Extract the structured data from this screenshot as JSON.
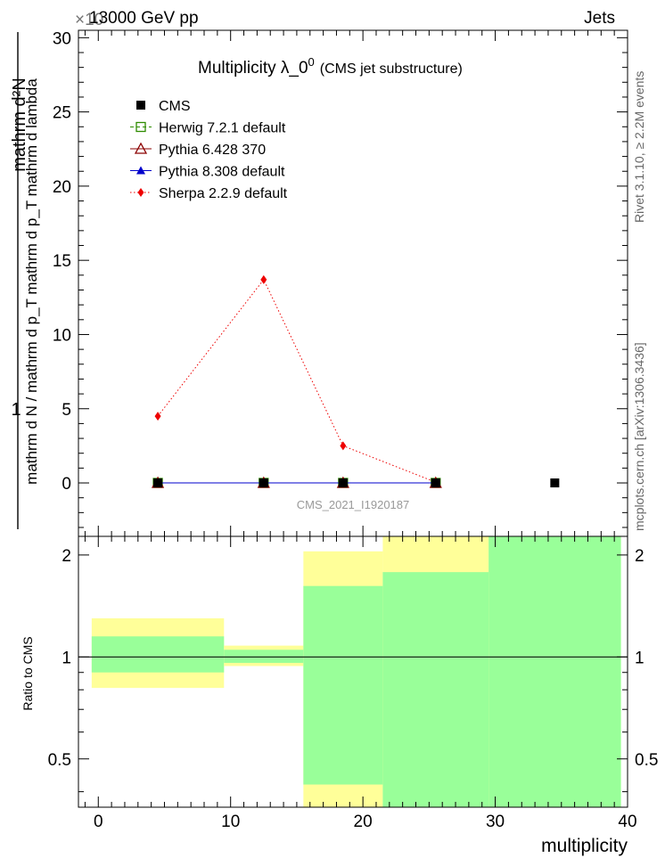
{
  "header": {
    "left": "13000 GeV pp",
    "exponent": "×10",
    "right": "Jets",
    "side_right_top": "Rivet 3.1.10, ≥ 2.2M events",
    "side_right_bottom": "mcplots.cern.ch [arXiv:1306.3436]"
  },
  "chart_data": [
    {
      "type": "line",
      "title_main": "Multiplicity  λ_0",
      "title_sup": "0",
      "title_sub": "(CMS jet substructure)",
      "ylabel_numerator": "mathrm d²N",
      "ylabel_denominator": "mathrm d N / mathrm d p_T mathrm d p_T mathrm d lambda",
      "ylabel_one": "1",
      "watermark": "CMS_2021_I1920187",
      "xlim": [
        -1.5,
        40
      ],
      "ylim": [
        -3.6,
        30.5
      ],
      "yticks": [
        0,
        5,
        10,
        15,
        20,
        25,
        30
      ],
      "legend_position": "top-left",
      "series": [
        {
          "name": "CMS",
          "color": "#000000",
          "marker": "square-filled",
          "line": "none",
          "x": [
            4.5,
            12.5,
            18.5,
            25.5,
            34.5
          ],
          "y": [
            0,
            0,
            0,
            0,
            0
          ]
        },
        {
          "name": "Herwig 7.2.1 default",
          "color": "#2e8b00",
          "marker": "square-open",
          "line": "dashed",
          "x": [
            4.5,
            12.5,
            18.5,
            25.5
          ],
          "y": [
            0,
            0,
            0,
            0
          ]
        },
        {
          "name": "Pythia 6.428 370",
          "color": "#8b0000",
          "marker": "triangle-open",
          "line": "solid",
          "x": [
            4.5,
            12.5,
            18.5,
            25.5
          ],
          "y": [
            0,
            0,
            0,
            0
          ]
        },
        {
          "name": "Pythia 8.308 default",
          "color": "#0000cc",
          "marker": "triangle-filled",
          "line": "solid",
          "x": [
            4.5,
            12.5,
            18.5,
            25.5
          ],
          "y": [
            0,
            0,
            0,
            0
          ]
        },
        {
          "name": "Sherpa 2.2.9 default",
          "color": "#ee0000",
          "marker": "diamond-filled",
          "line": "dotted",
          "x": [
            4.5,
            12.5,
            18.5,
            25.5
          ],
          "y": [
            4.5,
            13.7,
            2.5,
            0.05
          ]
        }
      ]
    },
    {
      "type": "area",
      "ylabel": "Ratio to CMS",
      "xlabel": "multiplicity",
      "xlim": [
        -1.5,
        40
      ],
      "ylim": [
        0.36,
        2.27
      ],
      "xticks": [
        0,
        10,
        20,
        30,
        40
      ],
      "yticks": [
        0.5,
        1,
        2
      ],
      "reference_line": 1,
      "bands": [
        {
          "x0": -0.5,
          "x1": 9.5,
          "yellow": [
            0.81,
            1.3
          ],
          "green": [
            0.9,
            1.15
          ]
        },
        {
          "x0": 9.5,
          "x1": 15.5,
          "yellow": [
            0.94,
            1.08
          ],
          "green": [
            0.96,
            1.05
          ]
        },
        {
          "x0": 15.5,
          "x1": 21.5,
          "yellow": [
            0.36,
            2.05
          ],
          "green": [
            0.42,
            1.62
          ]
        },
        {
          "x0": 21.5,
          "x1": 29.5,
          "yellow": [
            0.36,
            2.27
          ],
          "green": [
            0.36,
            1.78
          ]
        },
        {
          "x0": 29.5,
          "x1": 39.5,
          "yellow": [
            0.36,
            2.27
          ],
          "green": [
            0.36,
            2.27
          ]
        }
      ],
      "band_colors": {
        "yellow": "#ffff99",
        "green": "#99ff99"
      }
    }
  ]
}
